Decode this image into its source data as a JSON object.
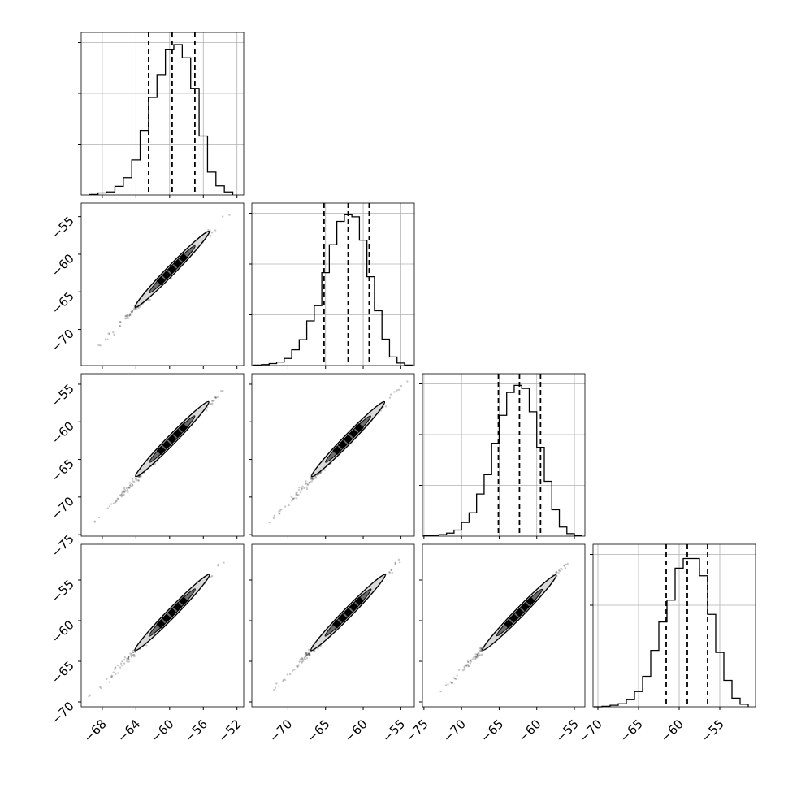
{
  "chart_data": {
    "type": "corner",
    "n_params": 4,
    "title": "",
    "grid": true,
    "quantile_lines": "dashed",
    "histograms": [
      {
        "param_index": 0,
        "bins": [
          -69.5,
          -68.5,
          -67.5,
          -66.5,
          -65.5,
          -64.5,
          -63.5,
          -62.5,
          -61.5,
          -60.5,
          -59.5,
          -58.5,
          -57.5,
          -56.5,
          -55.5,
          -54.5,
          -53.5,
          -52.5
        ],
        "counts": [
          1,
          4,
          6,
          17,
          34,
          69,
          127,
          192,
          237,
          287,
          296,
          270,
          210,
          116,
          45,
          18,
          6
        ],
        "quantiles": [
          -62.5,
          -59.7,
          -57.0
        ],
        "ylim": [
          0,
          320
        ],
        "y_gridlines": [
          100,
          200,
          300
        ]
      },
      {
        "param_index": 1,
        "bins": [
          -74.5,
          -73.5,
          -72.5,
          -71.5,
          -70.5,
          -69.5,
          -68.5,
          -67.5,
          -66.5,
          -65.5,
          -64.5,
          -63.5,
          -62.5,
          -61.5,
          -60.5,
          -59.5,
          -58.5,
          -57.5,
          -56.5,
          -55.5,
          -54.5,
          -53.5
        ],
        "counts": [
          1,
          2,
          4,
          7,
          14,
          31,
          51,
          88,
          118,
          183,
          238,
          284,
          297,
          293,
          247,
          175,
          108,
          52,
          17,
          5,
          1
        ],
        "quantiles": [
          -65.2,
          -62.0,
          -59.2
        ],
        "ylim": [
          0,
          320
        ],
        "y_gridlines": [
          100,
          200,
          300
        ]
      },
      {
        "param_index": 2,
        "bins": [
          -75.0,
          -74.0,
          -73.0,
          -72.0,
          -71.0,
          -70.0,
          -69.0,
          -68.0,
          -67.0,
          -66.0,
          -65.0,
          -64.0,
          -63.0,
          -62.0,
          -61.0,
          -60.0,
          -59.0,
          -58.0,
          -57.0,
          -56.0,
          -55.0,
          -54.0
        ],
        "counts": [
          1,
          1,
          3,
          6,
          12,
          27,
          46,
          83,
          121,
          183,
          238,
          283,
          297,
          291,
          245,
          175,
          108,
          52,
          18,
          5,
          1
        ],
        "quantiles": [
          -65.1,
          -62.3,
          -59.5
        ],
        "ylim": [
          0,
          320
        ],
        "y_gridlines": [
          100,
          200,
          300
        ]
      },
      {
        "param_index": 3,
        "bins": [
          -70.5,
          -69.5,
          -68.5,
          -67.5,
          -66.5,
          -65.5,
          -64.5,
          -63.5,
          -62.5,
          -61.5,
          -60.5,
          -59.5,
          -58.5,
          -57.5,
          -56.5,
          -55.5,
          -54.5,
          -53.5,
          -52.5,
          -51.5
        ],
        "counts": [
          0,
          1,
          3,
          6,
          14,
          30,
          60,
          111,
          167,
          210,
          273,
          292,
          292,
          258,
          182,
          107,
          52,
          17,
          5
        ],
        "quantiles": [
          -61.6,
          -59.0,
          -56.5
        ],
        "ylim": [
          0,
          320
        ],
        "y_gridlines": [
          100,
          200,
          300
        ]
      }
    ],
    "param_ranges": [
      [
        -70.5,
        -51.2
      ],
      [
        -74.8,
        -53.2
      ],
      [
        -75.2,
        -53.6
      ],
      [
        -70.6,
        -50.6
      ]
    ],
    "axis_ticks": {
      "x": [
        {
          "param_index": 0,
          "ticks": [
            -68,
            -64,
            -60,
            -56,
            -52
          ],
          "labels": [
            "−68",
            "−64",
            "−60",
            "−56",
            "−52"
          ]
        },
        {
          "param_index": 1,
          "ticks": [
            -70,
            -65,
            -60,
            -55
          ],
          "labels": [
            "−70",
            "−65",
            "−60",
            "−55"
          ]
        },
        {
          "param_index": 2,
          "ticks": [
            -75,
            -70,
            -65,
            -60,
            -55
          ],
          "labels": [
            "−75",
            "−70",
            "−65",
            "−60",
            "−55"
          ]
        },
        {
          "param_index": 3,
          "ticks": [
            -70,
            -65,
            -60,
            -55
          ],
          "labels": [
            "−70",
            "−65",
            "−60",
            "−55"
          ]
        }
      ],
      "y": [
        {
          "param_index": 1,
          "ticks": [
            -55,
            -60,
            -65,
            -70
          ],
          "labels": [
            "−55",
            "−60",
            "−65",
            "−70"
          ]
        },
        {
          "param_index": 2,
          "ticks": [
            -55,
            -60,
            -65,
            -70,
            -75
          ],
          "labels": [
            "−55",
            "−60",
            "−65",
            "−70",
            "−75"
          ]
        },
        {
          "param_index": 3,
          "ticks": [
            -55,
            -60,
            -65,
            -70
          ],
          "labels": [
            "−55",
            "−60",
            "−65",
            "−70"
          ]
        }
      ]
    },
    "scatter_panels": [
      {
        "x_param": 0,
        "y_param": 1,
        "center": [
          -59.7,
          -62.0
        ],
        "x_extent": [
          -69.5,
          -52.5
        ],
        "y_extent": [
          -73.5,
          -54.0
        ]
      },
      {
        "x_param": 0,
        "y_param": 2,
        "center": [
          -59.7,
          -62.3
        ],
        "x_extent": [
          -69.5,
          -52.5
        ],
        "y_extent": [
          -74.0,
          -54.5
        ]
      },
      {
        "x_param": 1,
        "y_param": 2,
        "center": [
          -62.0,
          -62.3
        ],
        "x_extent": [
          -73.0,
          -54.0
        ],
        "y_extent": [
          -74.0,
          -54.5
        ]
      },
      {
        "x_param": 0,
        "y_param": 3,
        "center": [
          -59.7,
          -59.0
        ],
        "x_extent": [
          -69.5,
          -52.5
        ],
        "y_extent": [
          -69.5,
          -51.5
        ]
      },
      {
        "x_param": 1,
        "y_param": 3,
        "center": [
          -62.0,
          -59.0
        ],
        "x_extent": [
          -73.0,
          -54.0
        ],
        "y_extent": [
          -69.5,
          -51.5
        ]
      },
      {
        "x_param": 2,
        "y_param": 3,
        "center": [
          -62.3,
          -59.0
        ],
        "x_extent": [
          -73.5,
          -54.5
        ],
        "y_extent": [
          -69.5,
          -51.5
        ]
      }
    ]
  }
}
